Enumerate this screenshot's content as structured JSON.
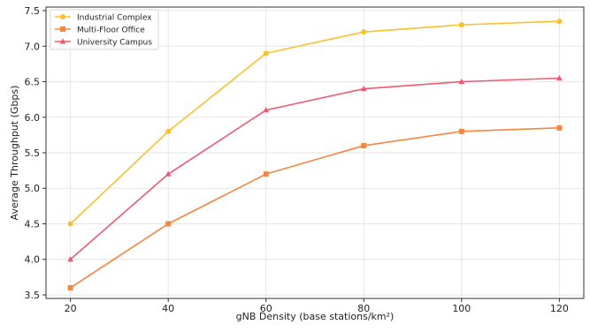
{
  "chart_data": {
    "type": "line",
    "title": "",
    "xlabel": "gNB Density (base stations/km²)",
    "ylabel": "Average Throughput (Gbps)",
    "x": [
      20,
      40,
      60,
      80,
      100,
      120
    ],
    "x_ticks": [
      "20",
      "40",
      "60",
      "80",
      "100",
      "120"
    ],
    "xlim": [
      15,
      125
    ],
    "y_ticks": [
      "3.5",
      "4.0",
      "4.5",
      "5.0",
      "5.5",
      "6.0",
      "6.5",
      "7.0",
      "7.5"
    ],
    "ylim": [
      3.45,
      7.55
    ],
    "grid": true,
    "legend_position": "top-left",
    "series": [
      {
        "name": "Industrial Complex",
        "color": "#fbbf2c",
        "marker": "circle",
        "values": [
          4.5,
          5.8,
          6.9,
          7.2,
          7.3,
          7.35
        ]
      },
      {
        "name": "Multi-Floor Office",
        "color": "#f5853f",
        "marker": "square",
        "values": [
          3.6,
          4.5,
          5.2,
          5.6,
          5.8,
          5.85
        ]
      },
      {
        "name": "University Campus",
        "color": "#ef5a6f",
        "marker": "triangle",
        "values": [
          4.0,
          5.2,
          6.1,
          6.4,
          6.5,
          6.55
        ]
      }
    ]
  }
}
